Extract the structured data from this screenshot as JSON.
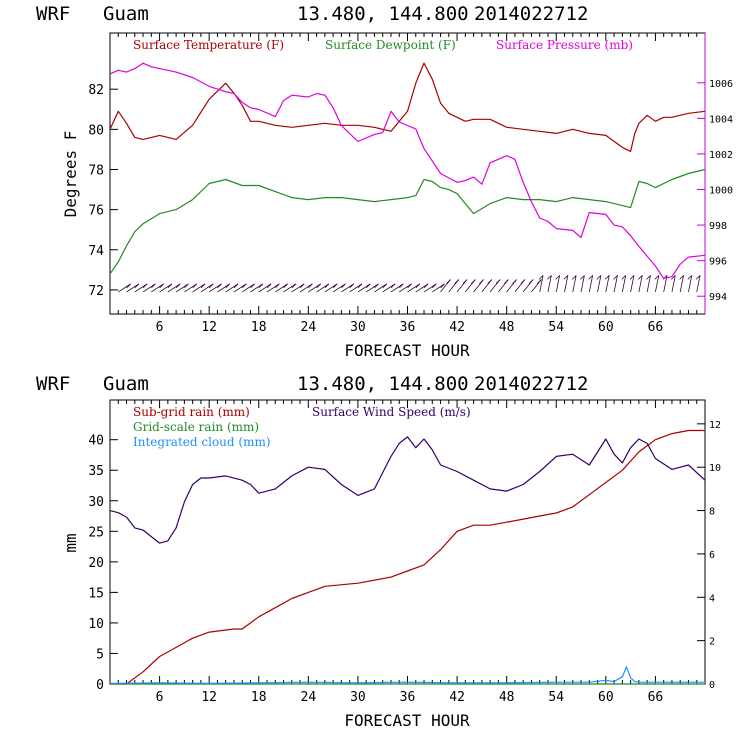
{
  "header": {
    "model": "WRF",
    "location": "Guam",
    "coords": "13.480, 144.800",
    "run": "2014022712"
  },
  "colors": {
    "temperature": "#aa0000",
    "dewpoint": "#228b22",
    "pressure": "#dd00dd",
    "wind": "#330066",
    "subgrid_rain": "#aa0000",
    "grid_rain": "#228b22",
    "cloud": "#1e90ff"
  },
  "chart_data": [
    {
      "type": "line",
      "title": "WRF Guam 13.480, 144.800 2014022712",
      "xlabel": "FORECAST HOUR",
      "ylabel": "Degrees F",
      "y2label": "",
      "xlim": [
        0,
        72
      ],
      "ylim": [
        70.8,
        84.8
      ],
      "y2lim": [
        993.0,
        1008.8
      ],
      "xticks": [
        "6",
        "12",
        "18",
        "24",
        "30",
        "36",
        "42",
        "48",
        "54",
        "60",
        "66"
      ],
      "yticks": [
        "72",
        "74",
        "76",
        "78",
        "80",
        "82"
      ],
      "y2ticks": [
        "994",
        "996",
        "998",
        "1000",
        "1002",
        "1004",
        "1006"
      ],
      "legend": [
        "Surface Temperature (F)",
        "Surface Dewpoint (F)",
        "Surface Pressure (mb)"
      ],
      "legend_position": "top",
      "wind_barbs": "bottom row at 72 F level, one barb per hour",
      "series": [
        {
          "name": "Surface Temperature (F)",
          "axis": "left",
          "x": [
            0,
            1,
            2,
            3,
            4,
            6,
            8,
            10,
            12,
            14,
            15,
            16,
            17,
            18,
            20,
            22,
            24,
            26,
            28,
            30,
            32,
            34,
            36,
            37,
            38,
            39,
            40,
            41,
            42,
            43,
            44,
            46,
            48,
            50,
            52,
            54,
            56,
            58,
            60,
            62,
            63,
            63.5,
            64,
            65,
            66,
            67,
            68,
            70,
            72
          ],
          "y": [
            80.0,
            80.9,
            80.3,
            79.6,
            79.5,
            79.7,
            79.5,
            80.2,
            81.5,
            82.3,
            81.8,
            81.2,
            80.4,
            80.4,
            80.2,
            80.1,
            80.2,
            80.3,
            80.2,
            80.2,
            80.1,
            79.9,
            80.9,
            82.3,
            83.3,
            82.5,
            81.3,
            80.8,
            80.6,
            80.4,
            80.5,
            80.5,
            80.1,
            80.0,
            79.9,
            79.8,
            80.0,
            79.8,
            79.7,
            79.1,
            78.9,
            79.8,
            80.3,
            80.7,
            80.4,
            80.6,
            80.6,
            80.8,
            80.9
          ]
        },
        {
          "name": "Surface Dewpoint (F)",
          "axis": "left",
          "x": [
            0,
            1,
            2,
            3,
            4,
            6,
            8,
            10,
            12,
            14,
            16,
            18,
            20,
            22,
            24,
            26,
            28,
            30,
            32,
            34,
            36,
            37,
            38,
            39,
            40,
            41,
            42,
            43,
            44,
            46,
            48,
            50,
            52,
            54,
            56,
            58,
            60,
            62,
            63,
            64,
            65,
            66,
            68,
            70,
            72
          ],
          "y": [
            72.8,
            73.4,
            74.2,
            74.9,
            75.3,
            75.8,
            76.0,
            76.5,
            77.3,
            77.5,
            77.2,
            77.2,
            76.9,
            76.6,
            76.5,
            76.6,
            76.6,
            76.5,
            76.4,
            76.5,
            76.6,
            76.7,
            77.5,
            77.4,
            77.1,
            77.0,
            76.8,
            76.3,
            75.8,
            76.3,
            76.6,
            76.5,
            76.5,
            76.4,
            76.6,
            76.5,
            76.4,
            76.2,
            76.1,
            77.4,
            77.3,
            77.1,
            77.5,
            77.8,
            78.0
          ]
        },
        {
          "name": "Surface Pressure (mb)",
          "axis": "right",
          "x": [
            0,
            1,
            2,
            3,
            4,
            5,
            6,
            8,
            10,
            12,
            14,
            15,
            16,
            17,
            18,
            19,
            20,
            21,
            22,
            24,
            25,
            26,
            27,
            28,
            30,
            32,
            33,
            34,
            35,
            36,
            37,
            38,
            40,
            42,
            43,
            44,
            45,
            46,
            48,
            49,
            50,
            51,
            52,
            53,
            54,
            56,
            57,
            58,
            60,
            61,
            62,
            63,
            64,
            66,
            67,
            68,
            69,
            70,
            72
          ],
          "y": [
            1006.5,
            1006.7,
            1006.6,
            1006.8,
            1007.1,
            1006.9,
            1006.8,
            1006.6,
            1006.3,
            1005.8,
            1005.5,
            1005.4,
            1004.9,
            1004.6,
            1004.5,
            1004.3,
            1004.1,
            1005.0,
            1005.3,
            1005.2,
            1005.4,
            1005.3,
            1004.6,
            1003.6,
            1002.7,
            1003.1,
            1003.2,
            1004.4,
            1003.8,
            1003.6,
            1003.4,
            1002.3,
            1000.9,
            1000.4,
            1000.5,
            1000.7,
            1000.3,
            1001.5,
            1001.9,
            1001.7,
            1000.4,
            999.3,
            998.4,
            998.2,
            997.8,
            997.7,
            997.3,
            998.7,
            998.6,
            998.0,
            997.9,
            997.4,
            996.8,
            995.7,
            995.0,
            995.1,
            995.8,
            996.2,
            996.3
          ]
        }
      ]
    },
    {
      "type": "line",
      "title": "WRF Guam 13.480, 144.800 2014022712",
      "xlabel": "FORECAST HOUR",
      "ylabel": "mm",
      "y2label": "",
      "xlim": [
        0,
        72
      ],
      "ylim": [
        0,
        46.5
      ],
      "y2lim": [
        0,
        13.1
      ],
      "xticks": [
        "6",
        "12",
        "18",
        "24",
        "30",
        "36",
        "42",
        "48",
        "54",
        "60",
        "66"
      ],
      "yticks": [
        "0",
        "5",
        "10",
        "15",
        "20",
        "25",
        "30",
        "35",
        "40"
      ],
      "y2ticks": [
        "0",
        "2",
        "4",
        "6",
        "8",
        "10",
        "12"
      ],
      "legend": [
        "Sub-grid rain (mm)",
        "Grid-scale rain (mm)",
        "Integrated cloud (mm)",
        "Surface Wind Speed (m/s)"
      ],
      "legend_position": "top-left",
      "series": [
        {
          "name": "Sub-grid rain (mm)",
          "axis": "left",
          "x": [
            0,
            2,
            4,
            6,
            8,
            10,
            12,
            15,
            16,
            18,
            20,
            22,
            24,
            26,
            30,
            34,
            36,
            38,
            40,
            42,
            44,
            46,
            48,
            50,
            52,
            54,
            56,
            58,
            60,
            62,
            64,
            66,
            68,
            70,
            72
          ],
          "y": [
            0,
            0,
            2.0,
            4.5,
            6.0,
            7.5,
            8.5,
            9.0,
            9.0,
            11.0,
            12.5,
            14.0,
            15.0,
            16.0,
            16.5,
            17.5,
            18.5,
            19.5,
            22.0,
            25.0,
            26.0,
            26.0,
            26.5,
            27.0,
            27.5,
            28.0,
            29.0,
            31.0,
            33.0,
            35.0,
            38.0,
            40.0,
            41.0,
            41.5,
            41.5
          ]
        },
        {
          "name": "Grid-scale rain (mm)",
          "axis": "left",
          "x": [
            0,
            24,
            48,
            72
          ],
          "y": [
            0,
            0,
            0,
            0
          ]
        },
        {
          "name": "Integrated cloud (mm)",
          "axis": "left",
          "x": [
            0,
            6,
            12,
            18,
            24,
            30,
            36,
            42,
            48,
            54,
            58,
            60,
            61,
            62,
            62.5,
            63,
            63.5,
            64,
            66,
            72
          ],
          "y": [
            0.1,
            0.2,
            0.1,
            0.2,
            0.3,
            0.2,
            0.3,
            0.2,
            0.2,
            0.3,
            0.3,
            0.6,
            0.4,
            1.2,
            2.8,
            1.0,
            0.4,
            0.3,
            0.3,
            0.3
          ]
        },
        {
          "name": "Surface Wind Speed (m/s)",
          "axis": "right",
          "x": [
            0,
            1,
            2,
            3,
            4,
            5,
            6,
            7,
            8,
            9,
            10,
            11,
            12,
            14,
            16,
            17,
            18,
            20,
            22,
            24,
            26,
            28,
            30,
            32,
            34,
            35,
            36,
            37,
            38,
            39,
            40,
            42,
            44,
            46,
            48,
            50,
            52,
            54,
            56,
            58,
            60,
            61,
            62,
            63,
            64,
            65,
            66,
            68,
            70,
            72
          ],
          "y": [
            8.0,
            7.9,
            7.7,
            7.2,
            7.1,
            6.8,
            6.5,
            6.6,
            7.2,
            8.4,
            9.2,
            9.5,
            9.5,
            9.6,
            9.4,
            9.2,
            8.8,
            9.0,
            9.6,
            10.0,
            9.9,
            9.2,
            8.7,
            9.0,
            10.5,
            11.1,
            11.4,
            10.9,
            11.3,
            10.8,
            10.1,
            9.8,
            9.4,
            9.0,
            8.9,
            9.2,
            9.8,
            10.5,
            10.6,
            10.1,
            11.3,
            10.6,
            10.2,
            10.9,
            11.3,
            11.1,
            10.4,
            9.9,
            10.1,
            9.4
          ]
        }
      ]
    }
  ]
}
